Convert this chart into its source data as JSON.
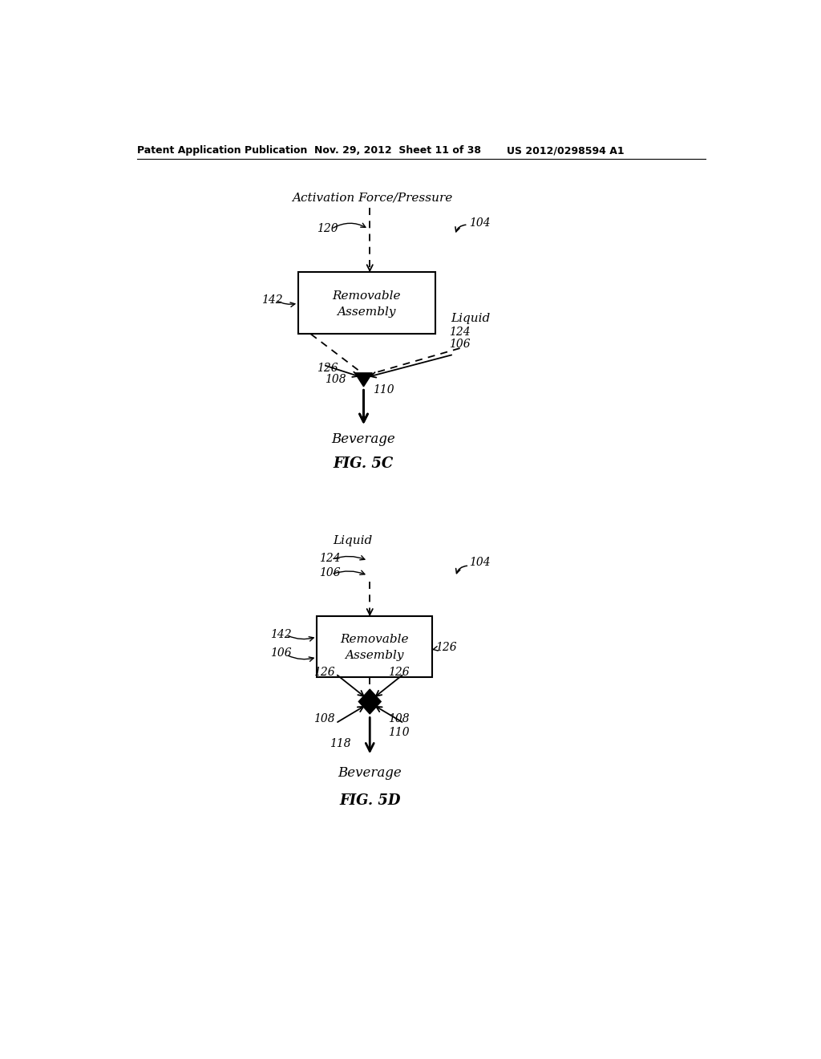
{
  "background_color": "#ffffff",
  "header_text": "Patent Application Publication",
  "header_date": "Nov. 29, 2012  Sheet 11 of 38",
  "header_patent": "US 2012/0298594 A1",
  "fig5c_label": "FIG. 5C",
  "fig5d_label": "FIG. 5D",
  "font_color": "#1a1a1a"
}
